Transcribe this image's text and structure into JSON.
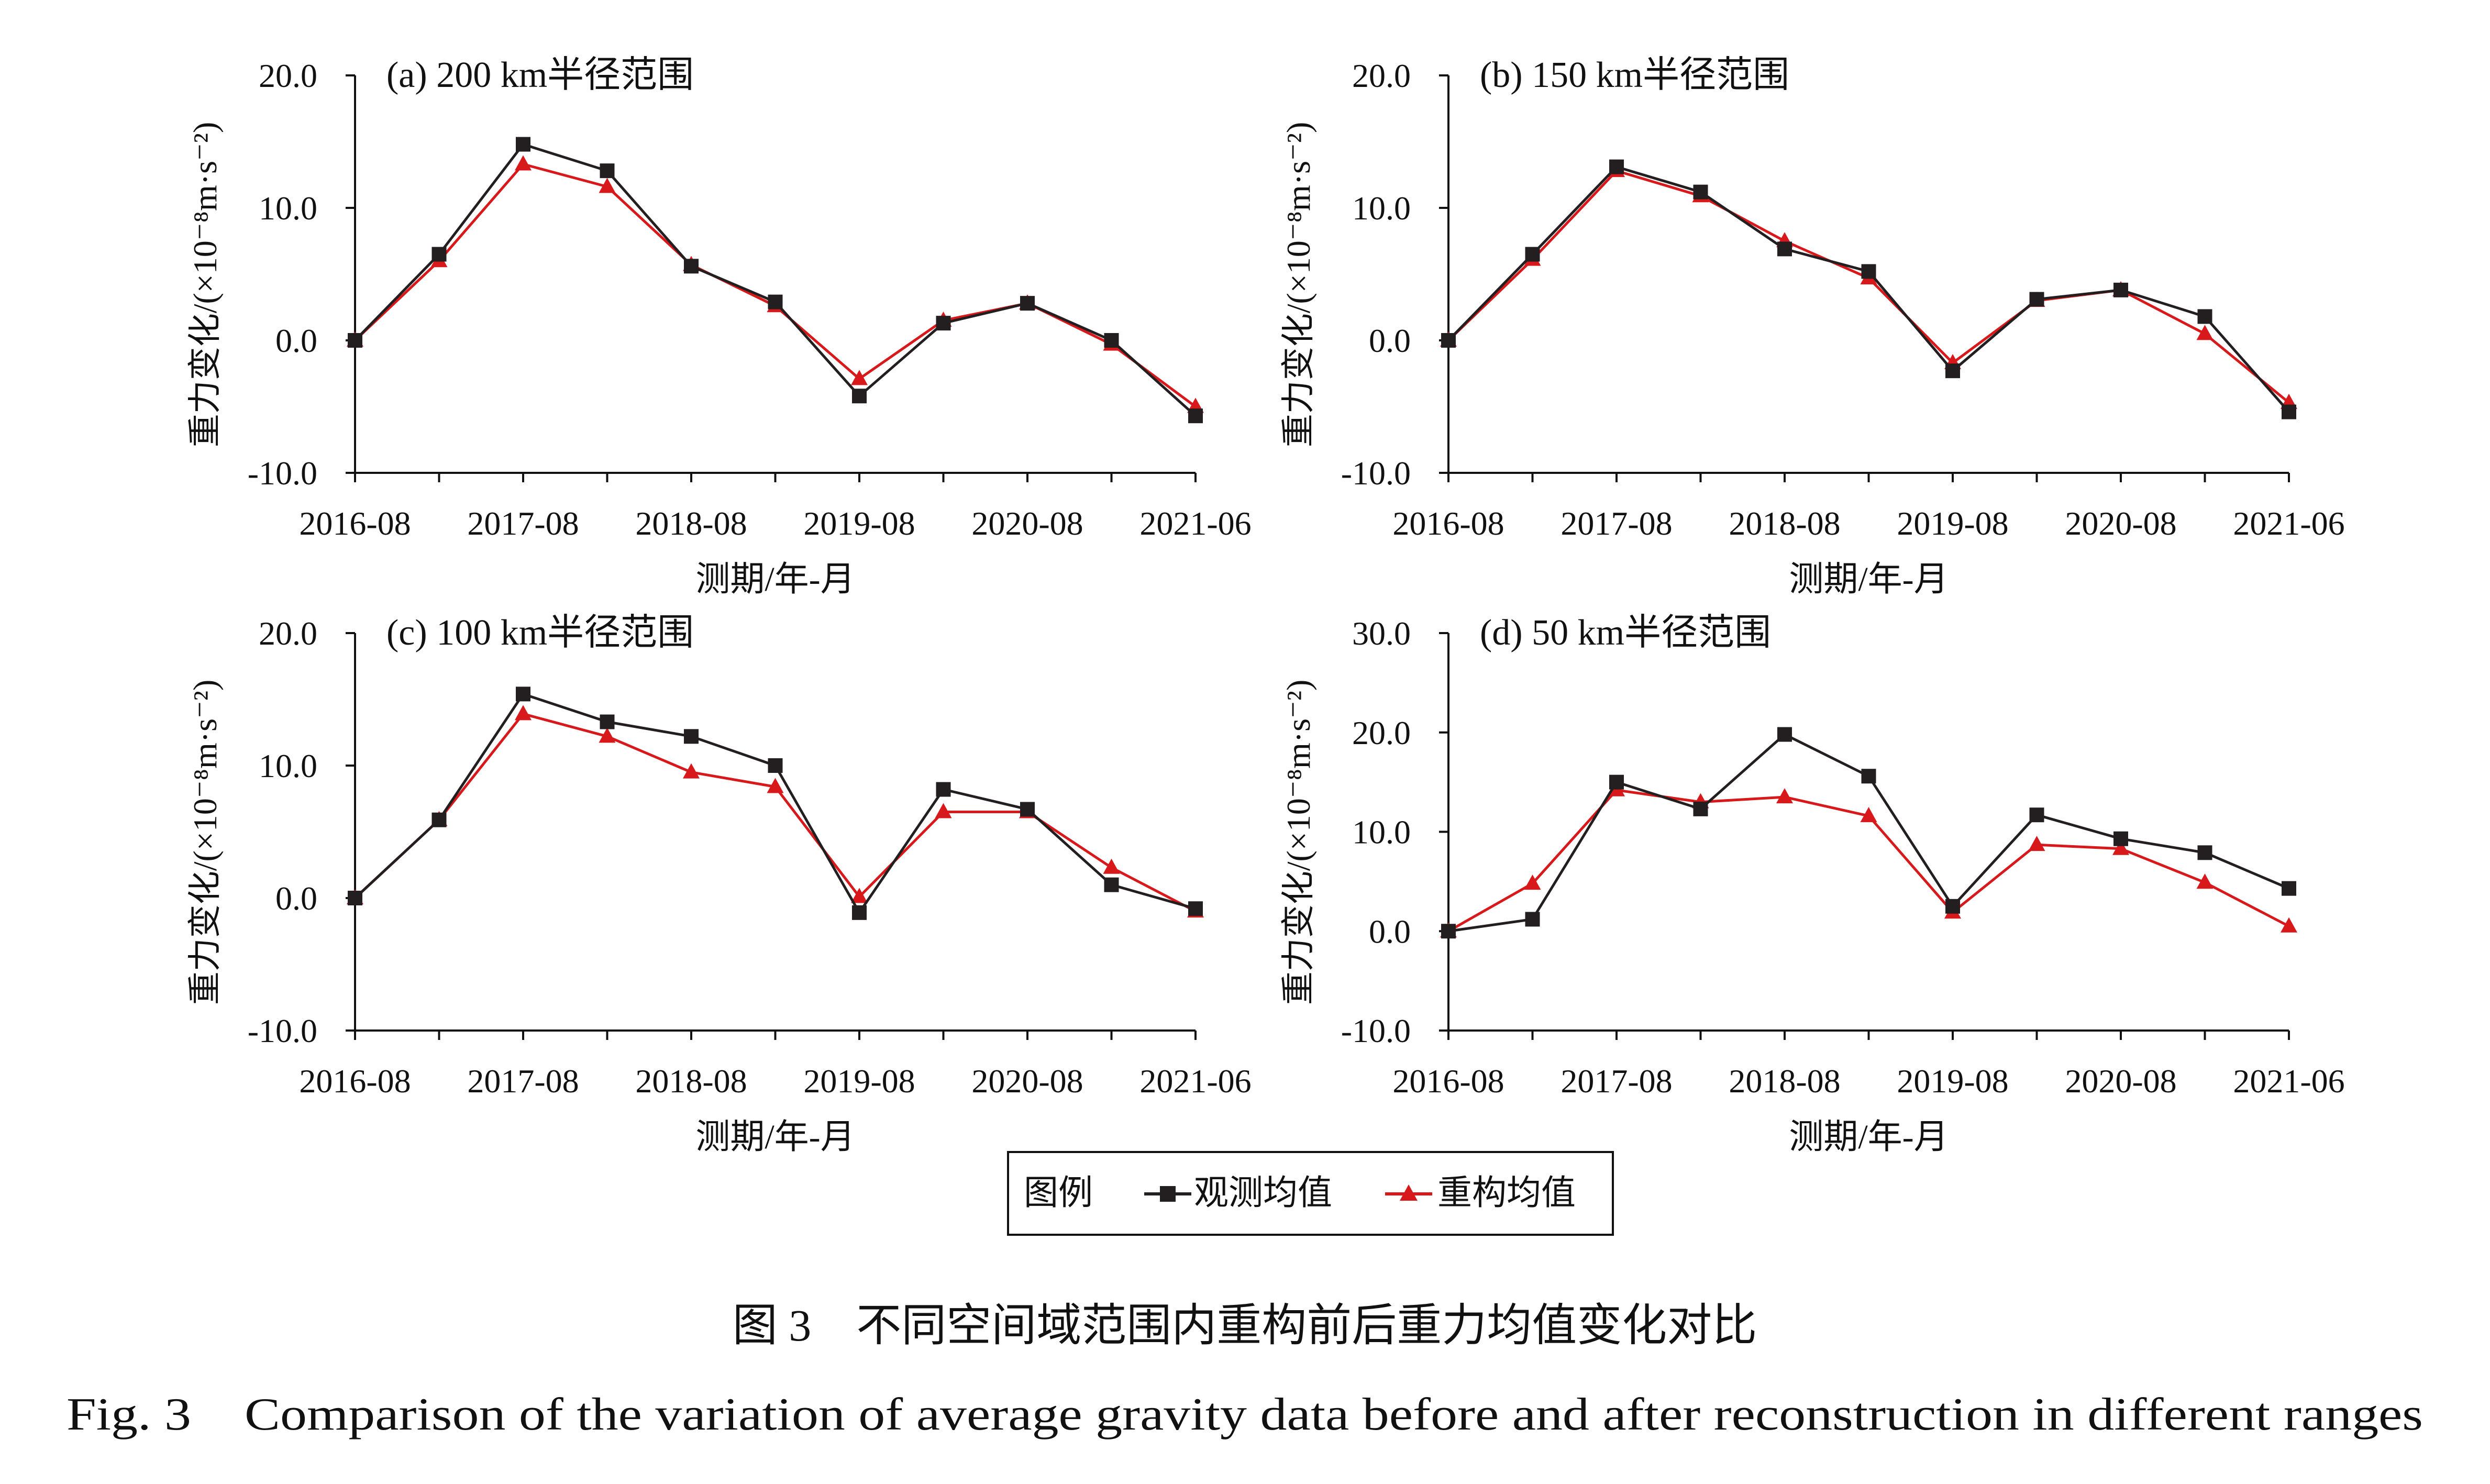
{
  "legend": {
    "title": "图例",
    "items": [
      {
        "label": "观测均值",
        "color": "#231f20",
        "marker": "square"
      },
      {
        "label": "重构均值",
        "color": "#d7191c",
        "marker": "triangle"
      }
    ]
  },
  "caption": {
    "zh": "图 3　不同空间域范围内重构前后重力均值变化对比",
    "en": "Fig. 3　Comparison of the variation of average gravity data before and after reconstruction in different ranges"
  },
  "chart_data": [
    {
      "type": "line",
      "title": "(a) 200 km半径范围",
      "xlabel": "测期/年-月",
      "ylabel": "重力变化/(×10⁻⁸m·s⁻²)",
      "x_tick_labels": [
        "2016-08",
        "2017-08",
        "2018-08",
        "2019-08",
        "2020-08",
        "2021-06"
      ],
      "ylim": [
        -10,
        20
      ],
      "y_ticks": [
        -10,
        0,
        10,
        20
      ],
      "y_tick_labels": [
        "-10.0",
        "0.0",
        "10.0",
        "20.0"
      ],
      "grid": false,
      "series": [
        {
          "name": "观测均值",
          "values": [
            0.0,
            6.5,
            14.8,
            12.8,
            5.6,
            2.9,
            -4.2,
            1.3,
            2.8,
            0.0,
            -5.7
          ]
        },
        {
          "name": "重构均值",
          "values": [
            0.0,
            6.0,
            13.3,
            11.6,
            5.7,
            2.6,
            -2.9,
            1.5,
            2.8,
            -0.3,
            -5.0
          ]
        }
      ]
    },
    {
      "type": "line",
      "title": "(b) 150 km半径范围",
      "xlabel": "测期/年-月",
      "ylabel": "重力变化/(×10⁻⁸m·s⁻²)",
      "x_tick_labels": [
        "2016-08",
        "2017-08",
        "2018-08",
        "2019-08",
        "2020-08",
        "2021-06"
      ],
      "ylim": [
        -10,
        20
      ],
      "y_ticks": [
        -10,
        0,
        10,
        20
      ],
      "y_tick_labels": [
        "-10.0",
        "0.0",
        "10.0",
        "20.0"
      ],
      "grid": false,
      "series": [
        {
          "name": "观测均值",
          "values": [
            0.0,
            6.5,
            13.1,
            11.2,
            6.9,
            5.2,
            -2.3,
            3.1,
            3.8,
            1.8,
            -5.4
          ]
        },
        {
          "name": "重构均值",
          "values": [
            0.0,
            6.1,
            12.8,
            10.9,
            7.5,
            4.7,
            -1.7,
            3.0,
            3.8,
            0.5,
            -4.7
          ]
        }
      ]
    },
    {
      "type": "line",
      "title": "(c) 100 km半径范围",
      "xlabel": "测期/年-月",
      "ylabel": "重力变化/(×10⁻⁸m·s⁻²)",
      "x_tick_labels": [
        "2016-08",
        "2017-08",
        "2018-08",
        "2019-08",
        "2020-08",
        "2021-06"
      ],
      "ylim": [
        -10,
        20
      ],
      "y_ticks": [
        -10,
        0,
        10,
        20
      ],
      "y_tick_labels": [
        "-10.0",
        "0.0",
        "10.0",
        "20.0"
      ],
      "grid": false,
      "series": [
        {
          "name": "观测均值",
          "values": [
            0.0,
            5.9,
            15.4,
            13.3,
            12.2,
            10.0,
            -1.1,
            8.2,
            6.7,
            1.0,
            -0.8
          ]
        },
        {
          "name": "重构均值",
          "values": [
            0.0,
            5.9,
            13.9,
            12.2,
            9.5,
            8.4,
            0.1,
            6.5,
            6.5,
            2.3,
            -1.0
          ]
        }
      ]
    },
    {
      "type": "line",
      "title": "(d) 50 km半径范围",
      "xlabel": "测期/年-月",
      "ylabel": "重力变化/(×10⁻⁸m·s⁻²)",
      "x_tick_labels": [
        "2016-08",
        "2017-08",
        "2018-08",
        "2019-08",
        "2020-08",
        "2021-06"
      ],
      "ylim": [
        -10,
        30
      ],
      "y_ticks": [
        -10,
        0,
        10,
        20,
        30
      ],
      "y_tick_labels": [
        "-10.0",
        "0.0",
        "10.0",
        "20.0",
        "30.0"
      ],
      "grid": false,
      "series": [
        {
          "name": "观测均值",
          "values": [
            0.0,
            1.2,
            15.0,
            12.3,
            19.8,
            15.6,
            2.5,
            11.7,
            9.3,
            7.9,
            4.3
          ]
        },
        {
          "name": "重构均值",
          "values": [
            0.0,
            4.8,
            14.2,
            13.0,
            13.5,
            11.6,
            1.9,
            8.7,
            8.3,
            4.9,
            0.5
          ]
        }
      ]
    }
  ]
}
